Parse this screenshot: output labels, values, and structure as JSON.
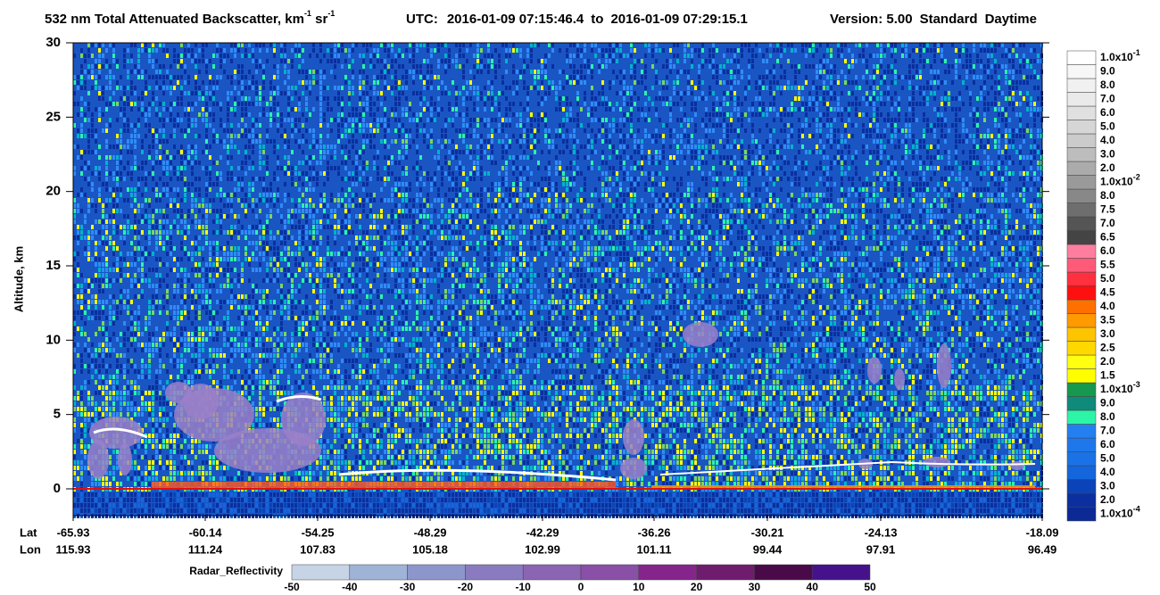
{
  "chart_data": {
    "type": "curtain",
    "title": {
      "text": "532 nm Total Attenuated Backscatter, km",
      "exp1": "-1",
      "unit2": " sr",
      "exp2": "-1"
    },
    "utc": {
      "label": "UTC:",
      "start": "2016-01-09 07:15:46.4",
      "to": "to",
      "end": "2016-01-09 07:29:15.1"
    },
    "version": "Version: 5.00",
    "product": "Standard",
    "daytime": "Daytime",
    "y_label": "Altitude, km",
    "ylim": [
      -1.8,
      30
    ],
    "yticks": [
      0,
      5,
      10,
      15,
      20,
      25,
      30
    ],
    "lat_label": "Lat",
    "lon_label": "Lon",
    "lat": [
      -65.93,
      -60.14,
      -54.25,
      -48.29,
      -42.29,
      -36.26,
      -30.21,
      -24.13,
      -18.09
    ],
    "lon": [
      115.93,
      111.24,
      107.83,
      105.18,
      102.99,
      101.11,
      99.44,
      97.91,
      96.49
    ],
    "colorbar": [
      {
        "value": 0.0001,
        "label": "1.0x10",
        "exp": "-4",
        "color": "#0b2a96"
      },
      {
        "value": 0.0002,
        "label": "2.0",
        "color": "#0b2f9e"
      },
      {
        "value": 0.0003,
        "label": "3.0",
        "color": "#0a44b8"
      },
      {
        "value": 0.0004,
        "label": "4.0",
        "color": "#1466dc"
      },
      {
        "value": 0.0005,
        "label": "5.0",
        "color": "#1a72e6"
      },
      {
        "value": 0.0006,
        "label": "6.0",
        "color": "#1e78ec"
      },
      {
        "value": 0.0007,
        "label": "7.0",
        "color": "#2480f0"
      },
      {
        "value": 0.0008,
        "label": "8.0",
        "color": "#2cf5a8"
      },
      {
        "value": 0.0009,
        "label": "9.0",
        "color": "#108a7a"
      },
      {
        "value": 0.001,
        "label": "1.0x10",
        "exp": "-3",
        "color": "#15994f"
      },
      {
        "value": 0.0015,
        "label": "1.5",
        "color": "#ffff00"
      },
      {
        "value": 0.002,
        "label": "2.0",
        "color": "#ffff10"
      },
      {
        "value": 0.0025,
        "label": "2.5",
        "color": "#ffd800"
      },
      {
        "value": 0.003,
        "label": "3.0",
        "color": "#ffc400"
      },
      {
        "value": 0.0035,
        "label": "3.5",
        "color": "#ff9a00"
      },
      {
        "value": 0.004,
        "label": "4.0",
        "color": "#ff7000"
      },
      {
        "value": 0.0045,
        "label": "4.5",
        "color": "#ff1010"
      },
      {
        "value": 0.005,
        "label": "5.0",
        "color": "#ff3040"
      },
      {
        "value": 0.0055,
        "label": "5.5",
        "color": "#ff5a78"
      },
      {
        "value": 0.006,
        "label": "6.0",
        "color": "#ff7ea0"
      },
      {
        "value": 0.0065,
        "label": "6.5",
        "color": "#444444"
      },
      {
        "value": 0.007,
        "label": "7.0",
        "color": "#555555"
      },
      {
        "value": 0.0075,
        "label": "7.5",
        "color": "#6e6e6e"
      },
      {
        "value": 0.008,
        "label": "8.0",
        "color": "#888888"
      },
      {
        "value": 0.01,
        "label": "1.0x10",
        "exp": "-2",
        "color": "#9a9a9a"
      },
      {
        "value": 0.02,
        "label": "2.0",
        "color": "#ababab"
      },
      {
        "value": 0.03,
        "label": "3.0",
        "color": "#bdbdbd"
      },
      {
        "value": 0.04,
        "label": "4.0",
        "color": "#cbcbcb"
      },
      {
        "value": 0.05,
        "label": "5.0",
        "color": "#d6d6d6"
      },
      {
        "value": 0.06,
        "label": "6.0",
        "color": "#e0e0e0"
      },
      {
        "value": 0.07,
        "label": "7.0",
        "color": "#eaeaea"
      },
      {
        "value": 0.08,
        "label": "8.0",
        "color": "#f1f1f1"
      },
      {
        "value": 0.09,
        "label": "9.0",
        "color": "#f7f7f7"
      },
      {
        "value": 0.1,
        "label": "1.0x10",
        "exp": "-1",
        "color": "#ffffff"
      }
    ],
    "radar": {
      "label": "Radar_Reflectivity",
      "ticks": [
        -50,
        -40,
        -30,
        -20,
        -10,
        0,
        10,
        20,
        30,
        40,
        50
      ],
      "colors": [
        "#c6d4e6",
        "#9fb3d6",
        "#8d96cb",
        "#8a7abf",
        "#8b64b3",
        "#8a4fa6",
        "#85258c",
        "#701c6e",
        "#4a0a4a",
        "#45128c"
      ]
    }
  }
}
